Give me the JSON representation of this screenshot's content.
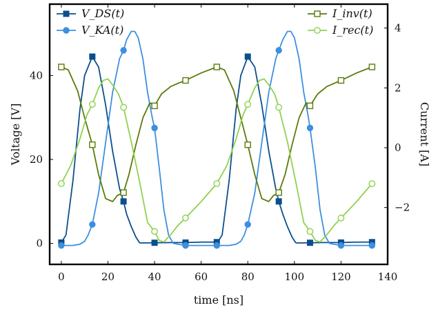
{
  "chart_data": {
    "type": "line",
    "xlabel": "time [ns]",
    "ylabel_left": "Voltage [V]",
    "ylabel_right": "Current [A]",
    "xlim": [
      -5,
      140
    ],
    "ylim_left": [
      -5,
      57
    ],
    "ylim_right": [
      -3.9,
      4.8
    ],
    "grid": false,
    "x_ticks": [
      "0",
      "20",
      "40",
      "60",
      "80",
      "100",
      "120",
      "140"
    ],
    "y_left_ticks": [
      "0",
      "20",
      "40"
    ],
    "y_right_ticks": [
      "−2",
      "0",
      "2",
      "4"
    ],
    "legend_left": [
      "V_DS(t)",
      "V_KA(t)"
    ],
    "legend_right": [
      "I_inv(t)",
      "I_rec(t)"
    ],
    "series": [
      {
        "name": "V_DS(t)",
        "axis": "left",
        "color": "#0b4f8c",
        "marker": "filled-square",
        "x": [
          0,
          2,
          5,
          8,
          10,
          13.3,
          16,
          19,
          22,
          25,
          26.7,
          28,
          30,
          32,
          33.5,
          34,
          40,
          50,
          53.3,
          60,
          66.5,
          67,
          69,
          72,
          75,
          77,
          80,
          83,
          86,
          89,
          92,
          93.3,
          95,
          97,
          99,
          100.5,
          101,
          106.7,
          113,
          120,
          126,
          133.3
        ],
        "y": [
          0.2,
          2,
          15,
          32,
          40,
          44.5,
          42,
          33,
          22,
          13,
          10,
          7,
          4,
          1.5,
          0.2,
          0.1,
          0.15,
          0.2,
          0.2,
          0.3,
          0.3,
          0.2,
          2,
          15,
          32,
          40,
          44.5,
          42,
          33,
          22,
          13,
          10,
          7,
          4,
          1.5,
          0.2,
          0.1,
          0.15,
          0.2,
          0.2,
          0.3,
          0.3
        ],
        "marker_x": [
          0,
          13.3,
          26.7,
          40,
          53.3,
          66.7,
          80,
          93.3,
          106.7,
          120,
          133.3
        ],
        "marker_y": [
          0.2,
          44.5,
          10,
          0.15,
          0.2,
          0.3,
          44.5,
          10,
          0.15,
          0.2,
          0.3
        ]
      },
      {
        "name": "V_KA(t)",
        "axis": "left",
        "color": "#3d8fe0",
        "marker": "filled-circle",
        "x": [
          0,
          5,
          8,
          10,
          11.5,
          13.3,
          16,
          19,
          22,
          25,
          26.7,
          28,
          30,
          31.5,
          33,
          35,
          37,
          39,
          40,
          42,
          44,
          46,
          48,
          53.3,
          60,
          66.7,
          72,
          75,
          77,
          78.5,
          80,
          83,
          86,
          89,
          92,
          93.3,
          95,
          97,
          98.5,
          100,
          102,
          104,
          106,
          106.7,
          109,
          111,
          113,
          115,
          120,
          126,
          133.3
        ],
        "y": [
          -0.5,
          -0.5,
          -0.2,
          0.5,
          2,
          4.5,
          12,
          24,
          36,
          44,
          46,
          48.5,
          50.5,
          50.5,
          49,
          44,
          36,
          30,
          27.5,
          18,
          8,
          2,
          0,
          -0.5,
          -0.5,
          -0.5,
          -0.5,
          -0.2,
          0.5,
          2,
          4.5,
          12,
          24,
          36,
          44,
          46,
          48.5,
          50.5,
          50.5,
          49,
          44,
          36,
          30,
          27.5,
          18,
          8,
          2,
          0,
          -0.5,
          -0.5,
          -0.5
        ],
        "marker_x": [
          0,
          13.3,
          26.7,
          40,
          53.3,
          66.7,
          80,
          93.3,
          106.7,
          120,
          133.3
        ],
        "marker_y": [
          -0.5,
          4.5,
          46,
          27.5,
          -0.5,
          -0.5,
          4.5,
          46,
          27.5,
          -0.5,
          -0.5
        ]
      },
      {
        "name": "I_inv(t)",
        "axis": "right",
        "color": "#5a7a08",
        "marker": "open-square",
        "x": [
          0,
          3,
          7,
          10,
          13.3,
          16,
          19,
          22,
          24,
          26.7,
          29,
          32,
          35,
          38,
          40,
          43,
          47,
          50,
          53.3,
          60,
          66.7,
          70,
          74,
          77,
          80,
          83,
          86,
          89,
          91,
          93.3,
          96,
          99,
          102,
          105,
          106.7,
          110,
          114,
          117,
          120,
          126.7,
          133.3
        ],
        "y": [
          2.7,
          2.6,
          1.9,
          1.0,
          0.1,
          -0.9,
          -1.7,
          -1.8,
          -1.6,
          -1.5,
          -0.9,
          0.1,
          1.0,
          1.5,
          1.4,
          1.8,
          2.05,
          2.15,
          2.25,
          2.5,
          2.7,
          2.6,
          1.9,
          1.0,
          0.1,
          -0.9,
          -1.7,
          -1.8,
          -1.6,
          -1.5,
          -0.9,
          0.1,
          1.0,
          1.5,
          1.4,
          1.8,
          2.05,
          2.15,
          2.25,
          2.5,
          2.7
        ],
        "marker_x": [
          0,
          13.3,
          26.7,
          40,
          53.3,
          66.7,
          80,
          93.3,
          106.7,
          120,
          133.3
        ],
        "marker_y": [
          2.7,
          0.1,
          -1.5,
          1.4,
          2.25,
          2.7,
          0.1,
          -1.5,
          1.4,
          2.25,
          2.7
        ]
      },
      {
        "name": "I_rec(t)",
        "axis": "right",
        "color": "#8fd14f",
        "marker": "open-circle",
        "x": [
          0,
          4,
          8,
          11,
          13.3,
          16,
          18,
          20,
          22,
          24.5,
          26.7,
          30,
          34,
          37,
          40,
          42,
          44,
          47,
          50,
          53.3,
          60,
          66.7,
          71,
          75,
          78,
          80,
          83,
          85,
          87,
          89,
          91.5,
          93.3,
          97,
          101,
          104,
          106.7,
          109,
          111,
          114,
          117,
          120,
          126.7,
          133.3
        ],
        "y": [
          -1.2,
          -0.6,
          0.3,
          1.1,
          1.45,
          2.0,
          2.25,
          2.3,
          2.1,
          1.8,
          1.35,
          0.2,
          -1.3,
          -2.5,
          -2.8,
          -3.1,
          -3.15,
          -2.9,
          -2.6,
          -2.35,
          -1.8,
          -1.2,
          -0.6,
          0.3,
          1.1,
          1.45,
          2.0,
          2.25,
          2.3,
          2.1,
          1.8,
          1.35,
          0.2,
          -1.3,
          -2.5,
          -2.8,
          -3.1,
          -3.15,
          -2.9,
          -2.6,
          -2.35,
          -1.8,
          -1.2
        ],
        "marker_x": [
          0,
          13.3,
          26.7,
          40,
          53.3,
          66.7,
          80,
          93.3,
          106.7,
          120,
          133.3
        ],
        "marker_y": [
          -1.2,
          1.45,
          1.35,
          -2.8,
          -2.35,
          -1.2,
          1.45,
          1.35,
          -2.8,
          -2.35,
          -1.2
        ]
      }
    ]
  }
}
